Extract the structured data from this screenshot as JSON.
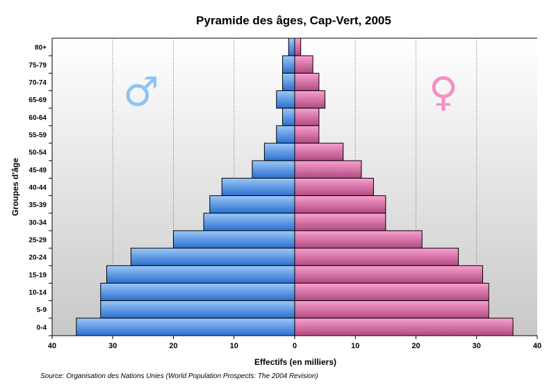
{
  "chart_data": {
    "type": "bar",
    "orientation": "horizontal-pyramid",
    "title": "Pyramide des âges, Cap-Vert, 2005",
    "xlabel": "Effectifs (en milliers)",
    "ylabel": "Groupes d'âge",
    "source": "Source: Organisation des Nations Unies (World Population Prospects: The 2004 Revision)",
    "xlim": [
      -40,
      40
    ],
    "xticks": [
      "40",
      "30",
      "20",
      "10",
      "0",
      "10",
      "20",
      "30",
      "40"
    ],
    "grid": "vertical dotted",
    "categories": [
      "80+",
      "75-79",
      "70-74",
      "65-69",
      "60-64",
      "55-59",
      "50-54",
      "45-49",
      "40-44",
      "35-39",
      "30-34",
      "25-29",
      "20-24",
      "15-19",
      "10-14",
      "5-9",
      "0-4"
    ],
    "series": [
      {
        "name": "♂",
        "color": "#4a90e2",
        "values": [
          1,
          2,
          2,
          3,
          2,
          3,
          5,
          7,
          12,
          14,
          15,
          20,
          27,
          31,
          32,
          32,
          36
        ]
      },
      {
        "name": "♀",
        "color": "#e879b0",
        "values": [
          1,
          3,
          4,
          5,
          4,
          4,
          8,
          11,
          13,
          15,
          15,
          21,
          27,
          31,
          32,
          32,
          36
        ]
      }
    ],
    "symbols": {
      "male": "♂",
      "female": "♀",
      "male_color": "#8ec4f5",
      "female_color": "#f58fc8"
    }
  }
}
